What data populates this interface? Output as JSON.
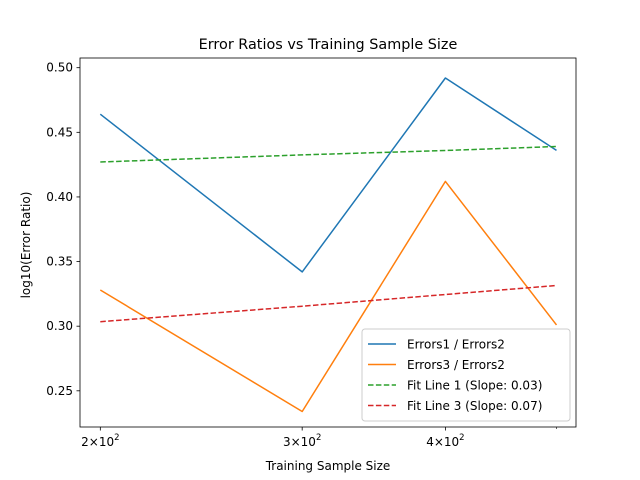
{
  "chart_data": {
    "type": "line",
    "title": "Error Ratios vs Training Sample Size",
    "xlabel": "Training Sample Size",
    "ylabel": "log10(Error Ratio)",
    "xscale": "log",
    "xlim": [
      192,
      520
    ],
    "ylim": [
      0.222,
      0.5075
    ],
    "x_ticks": [
      {
        "value": 200,
        "base": "2",
        "exp": "2"
      },
      {
        "value": 300,
        "base": "3",
        "exp": "2"
      },
      {
        "value": 400,
        "base": "4",
        "exp": "2"
      }
    ],
    "y_ticks": [
      0.25,
      0.3,
      0.35,
      0.4,
      0.45,
      0.5
    ],
    "x": [
      200,
      300,
      400,
      500
    ],
    "series": [
      {
        "name": "Errors1 / Errors2",
        "color": "#1f77b4",
        "style": "solid",
        "values": [
          0.464,
          0.342,
          0.492,
          0.436
        ]
      },
      {
        "name": "Errors3 / Errors2",
        "color": "#ff7f0e",
        "style": "solid",
        "values": [
          0.328,
          0.234,
          0.412,
          0.301
        ]
      },
      {
        "name": "Fit Line 1 (Slope: 0.03)",
        "color": "#2ca02c",
        "style": "dashed",
        "values": [
          0.427,
          0.4325,
          0.4359,
          0.439
        ]
      },
      {
        "name": "Fit Line 3 (Slope: 0.07)",
        "color": "#d62728",
        "style": "dashed",
        "values": [
          0.3035,
          0.3155,
          0.3245,
          0.3315
        ]
      }
    ],
    "legend_position": "lower-right",
    "grid": false
  }
}
